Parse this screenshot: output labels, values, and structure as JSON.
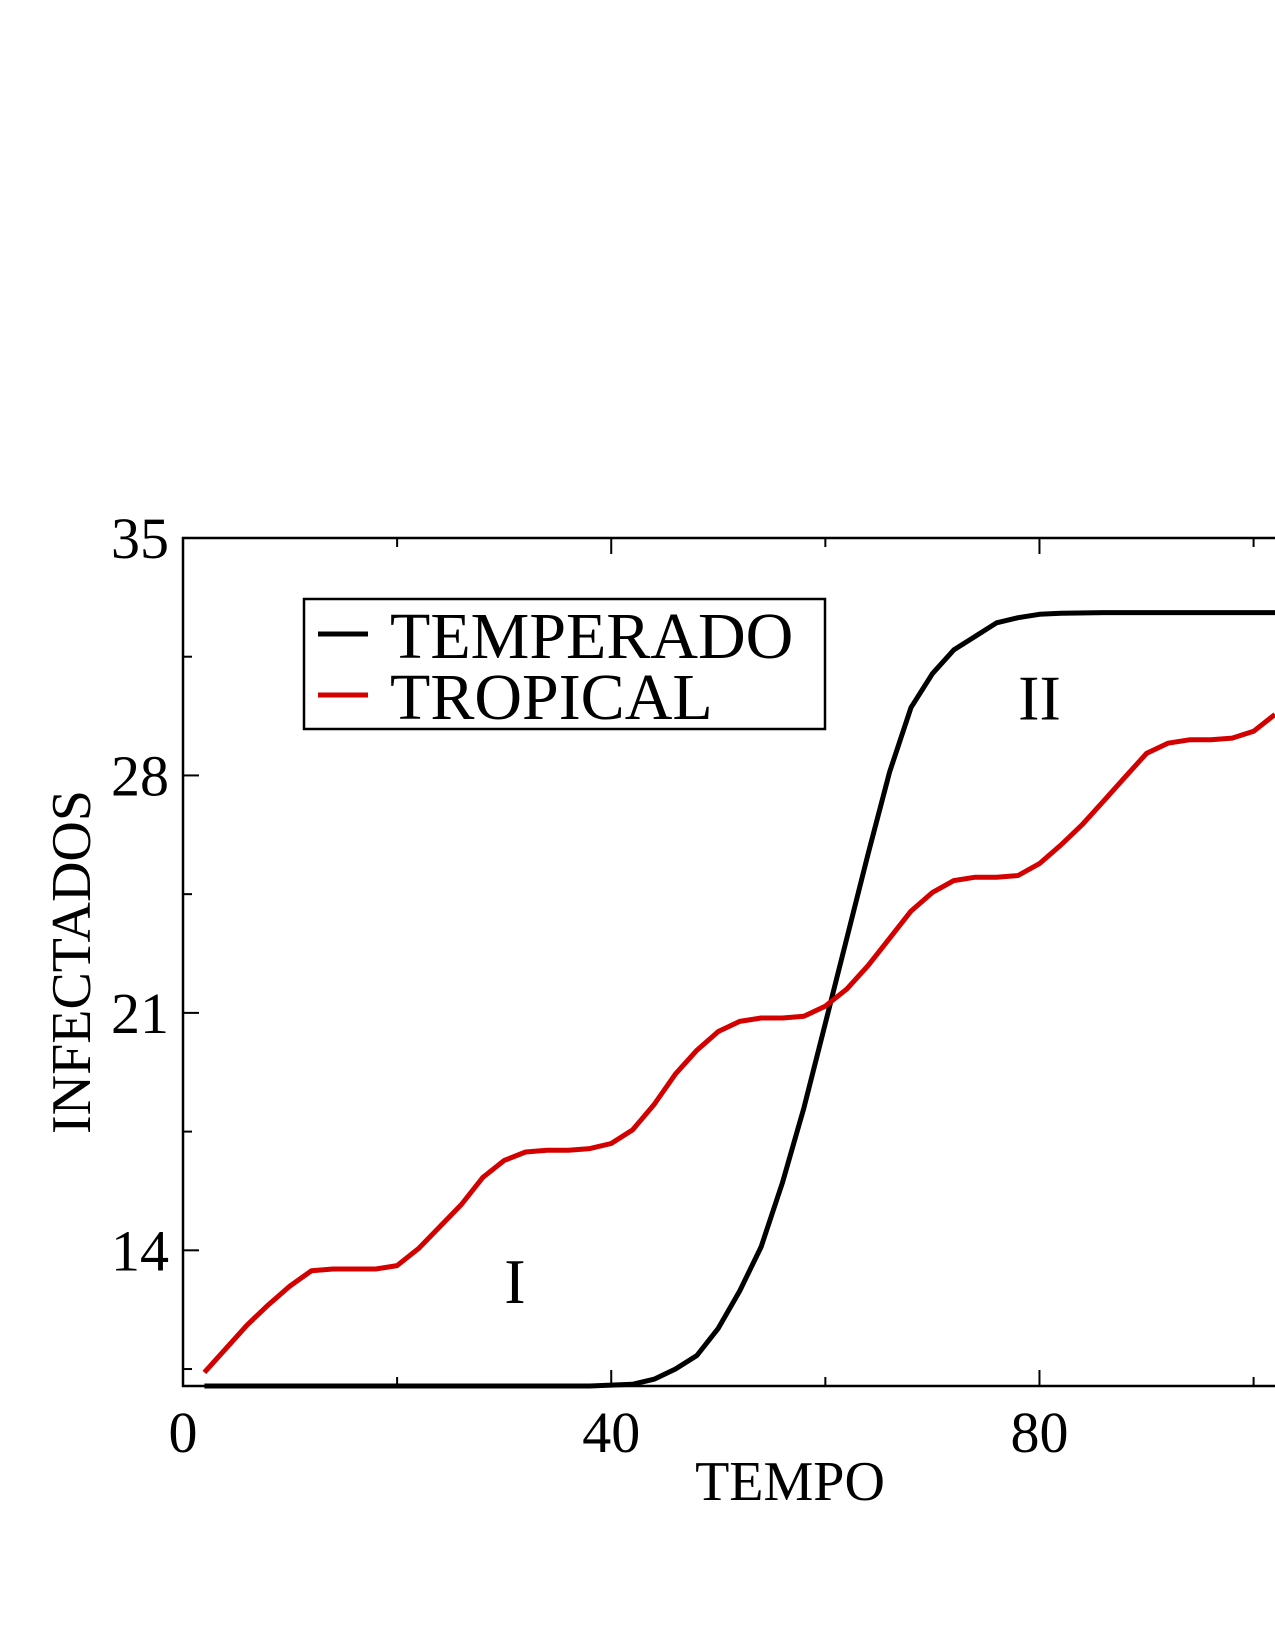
{
  "chart_data": {
    "type": "line",
    "title": "",
    "xlabel": "TEMPO",
    "ylabel": "INFECTADOS",
    "xlim": [
      0,
      102
    ],
    "ylim": [
      10,
      35
    ],
    "x_ticks": [
      0,
      40,
      80
    ],
    "y_ticks": [
      14,
      21,
      28,
      35
    ],
    "grid": false,
    "legend_position": "top-left",
    "series": [
      {
        "name": "TEMPERADO",
        "color": "#000000",
        "x": [
          2,
          10,
          20,
          30,
          38,
          42,
          44,
          46,
          48,
          50,
          52,
          54,
          56,
          58,
          60,
          62,
          64,
          66,
          68,
          70,
          72,
          74,
          76,
          78,
          80,
          82,
          86,
          90,
          96,
          102
        ],
        "y": [
          10.0,
          10.0,
          10.0,
          10.0,
          10.0,
          10.05,
          10.2,
          10.5,
          10.9,
          11.7,
          12.8,
          14.1,
          16.0,
          18.2,
          20.7,
          23.2,
          25.7,
          28.1,
          30.0,
          31.0,
          31.7,
          32.1,
          32.5,
          32.65,
          32.75,
          32.78,
          32.8,
          32.8,
          32.8,
          32.8
        ]
      },
      {
        "name": "TROPICAL",
        "color": "#d40000",
        "x": [
          2,
          4,
          6,
          8,
          10,
          12,
          14,
          18,
          20,
          22,
          24,
          26,
          28,
          30,
          32,
          34,
          36,
          38,
          40,
          42,
          44,
          46,
          48,
          50,
          52,
          54,
          56,
          58,
          60,
          62,
          64,
          66,
          68,
          70,
          72,
          74,
          76,
          78,
          80,
          82,
          84,
          86,
          88,
          90,
          92,
          94,
          96,
          98,
          100,
          102
        ],
        "y": [
          10.4,
          11.1,
          11.8,
          12.4,
          12.95,
          13.4,
          13.45,
          13.45,
          13.55,
          14.05,
          14.7,
          15.35,
          16.15,
          16.65,
          16.9,
          16.95,
          16.95,
          17.0,
          17.15,
          17.55,
          18.3,
          19.2,
          19.9,
          20.45,
          20.75,
          20.85,
          20.85,
          20.9,
          21.2,
          21.7,
          22.4,
          23.2,
          24.0,
          24.55,
          24.9,
          25.0,
          25.0,
          25.05,
          25.4,
          25.95,
          26.55,
          27.25,
          27.95,
          28.65,
          28.95,
          29.05,
          29.05,
          29.1,
          29.3,
          29.8
        ]
      }
    ],
    "annotations": [
      {
        "text": "I",
        "x": 31,
        "y": 13.1
      },
      {
        "text": "II",
        "x": 80,
        "y": 30.3
      }
    ]
  }
}
